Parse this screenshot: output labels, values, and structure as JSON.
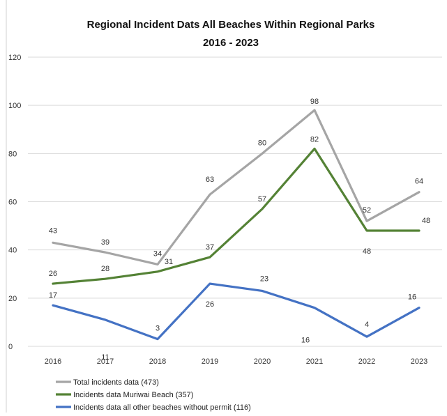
{
  "chart_data": {
    "type": "line",
    "title": "Regional Incident Dats All Beaches Within Regional Parks",
    "subtitle": "2016 - 2023",
    "xlabel": "",
    "ylabel": "",
    "categories": [
      "2016",
      "2017",
      "2018",
      "2019",
      "2020",
      "2021",
      "2022",
      "2023"
    ],
    "ylim": [
      0,
      120
    ],
    "yticks": [
      0,
      20,
      40,
      60,
      80,
      100,
      120
    ],
    "grid": true,
    "legend": "bottom-left",
    "series": [
      {
        "name": "Total incidents data (473)",
        "color": "#a5a5a5",
        "values": [
          43,
          39,
          34,
          63,
          80,
          98,
          52,
          64
        ]
      },
      {
        "name": "Incidents data Muriwai Beach (357)",
        "color": "#548235",
        "values": [
          26,
          28,
          31,
          37,
          57,
          82,
          48,
          48
        ]
      },
      {
        "name": "Incidents data all other beaches without permit (116)",
        "color": "#4472c4",
        "values": [
          17,
          11,
          3,
          26,
          23,
          16,
          4,
          16
        ]
      }
    ]
  }
}
